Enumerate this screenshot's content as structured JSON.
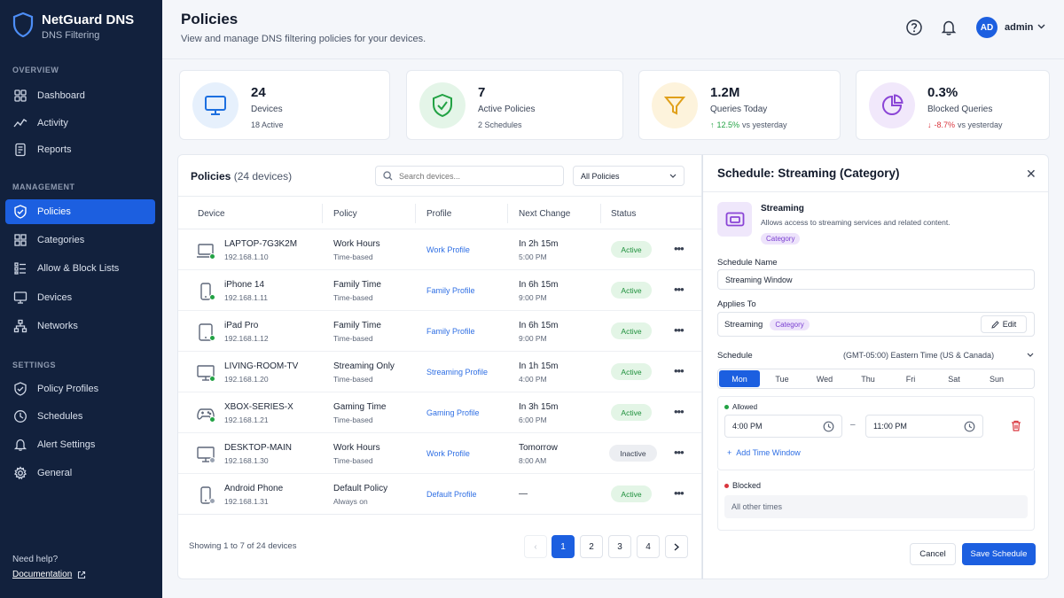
{
  "brand": {
    "name": "NetGuard DNS",
    "subtitle": "DNS Filtering"
  },
  "nav": {
    "overview_label": "OVERVIEW",
    "management_label": "MANAGEMENT",
    "settings_label": "SETTINGS",
    "items": [
      {
        "label": "Dashboard",
        "icon": "grid-icon"
      },
      {
        "label": "Activity",
        "icon": "activity-icon"
      },
      {
        "label": "Reports",
        "icon": "report-icon"
      },
      {
        "label": "Policies",
        "icon": "shield-icon",
        "active": true
      },
      {
        "label": "Categories",
        "icon": "categories-icon"
      },
      {
        "label": "Allow & Block Lists",
        "icon": "list-icon"
      },
      {
        "label": "Devices",
        "icon": "monitor-icon"
      },
      {
        "label": "Networks",
        "icon": "network-icon"
      },
      {
        "label": "Policy Profiles",
        "icon": "shield-check-icon"
      },
      {
        "label": "Schedules",
        "icon": "clock-icon"
      },
      {
        "label": "Alert Settings",
        "icon": "bell-icon"
      },
      {
        "label": "General",
        "icon": "gear-icon"
      }
    ],
    "help_text": "Need help?",
    "doc_link": "Documentation"
  },
  "header": {
    "title": "Policies",
    "subtitle": "View and manage DNS filtering policies for your devices.",
    "avatar_initials": "AD",
    "user": "admin"
  },
  "stats": [
    {
      "value": "24",
      "label": "Devices",
      "sub": "18 Active",
      "icon": "monitor-icon",
      "color": "#e6f0fc"
    },
    {
      "value": "7",
      "label": "Active Policies",
      "sub": "2 Schedules",
      "icon": "shield-check-icon",
      "color": "#e4f5e8"
    },
    {
      "value": "1.2M",
      "label": "Queries Today",
      "trend": "12.5%",
      "trend_sub": "vs yesterday",
      "icon": "filter-icon",
      "color": "#fdf3dc"
    },
    {
      "value": "0.3%",
      "label": "Blocked Queries",
      "trend": "-8.7%",
      "trend_sub": "vs yesterday",
      "icon": "pie-icon",
      "color": "#f1e8fb"
    }
  ],
  "policies": {
    "title": "Policies",
    "count": "(24 devices)",
    "search_placeholder": "Search devices...",
    "filter": "All Policies",
    "columns": [
      "Device",
      "Policy",
      "Profile",
      "Next Change",
      "Status"
    ],
    "rows": [
      {
        "device": "LAPTOP-7G3K2M",
        "ip": "192.168.1.10",
        "icon": "laptop-icon",
        "online": true,
        "policy": "Work Hours",
        "policy_type": "Time-based",
        "profile": "Work Profile",
        "next": "In 2h 15m",
        "next_time": "5:00 PM",
        "status": "Active"
      },
      {
        "device": "iPhone 14",
        "ip": "192.168.1.11",
        "icon": "phone-icon",
        "online": true,
        "policy": "Family Time",
        "policy_type": "Time-based",
        "profile": "Family Profile",
        "next": "In 6h 15m",
        "next_time": "9:00 PM",
        "status": "Active"
      },
      {
        "device": "iPad Pro",
        "ip": "192.168.1.12",
        "icon": "tablet-icon",
        "online": true,
        "policy": "Family Time",
        "policy_type": "Time-based",
        "profile": "Family Profile",
        "next": "In 6h 15m",
        "next_time": "9:00 PM",
        "status": "Active"
      },
      {
        "device": "LIVING-ROOM-TV",
        "ip": "192.168.1.20",
        "icon": "tv-icon",
        "online": true,
        "policy": "Streaming Only",
        "policy_type": "Time-based",
        "profile": "Streaming Profile",
        "next": "In 1h 15m",
        "next_time": "4:00 PM",
        "status": "Active"
      },
      {
        "device": "XBOX-SERIES-X",
        "ip": "192.168.1.21",
        "icon": "gamepad-icon",
        "online": true,
        "policy": "Gaming Time",
        "policy_type": "Time-based",
        "profile": "Gaming Profile",
        "next": "In 3h 15m",
        "next_time": "6:00 PM",
        "status": "Active"
      },
      {
        "device": "DESKTOP-MAIN",
        "ip": "192.168.1.30",
        "icon": "desktop-icon",
        "online": false,
        "policy": "Work Hours",
        "policy_type": "Time-based",
        "profile": "Work Profile",
        "next": "Tomorrow",
        "next_time": "8:00 AM",
        "status": "Inactive"
      },
      {
        "device": "Android Phone",
        "ip": "192.168.1.31",
        "icon": "phone-icon",
        "online": false,
        "policy": "Default Policy",
        "policy_type": "Always on",
        "profile": "Default Profile",
        "next": "—",
        "next_time": "",
        "status": "Active"
      }
    ],
    "showing": "Showing 1 to 7 of 24 devices",
    "pages": [
      "1",
      "2",
      "3",
      "4"
    ]
  },
  "schedule": {
    "title": "Schedule: Streaming (Category)",
    "category_name": "Streaming",
    "category_desc": "Allows access to streaming services and related content.",
    "category_tag": "Category",
    "name_label": "Schedule Name",
    "name_value": "Streaming Window",
    "applies_label": "Applies To",
    "applies_value": "Streaming",
    "applies_tag": "Category",
    "edit": "Edit",
    "schedule_label": "Schedule",
    "timezone": "(GMT-05:00) Eastern Time (US & Canada)",
    "days": [
      "Mon",
      "Tue",
      "Wed",
      "Thu",
      "Fri",
      "Sat",
      "Sun"
    ],
    "allowed_label": "Allowed",
    "start_time": "4:00 PM",
    "end_time": "11:00 PM",
    "add_window": "Add Time Window",
    "blocked_label": "Blocked",
    "blocked_desc": "All other times",
    "cancel": "Cancel",
    "save": "Save Schedule"
  }
}
